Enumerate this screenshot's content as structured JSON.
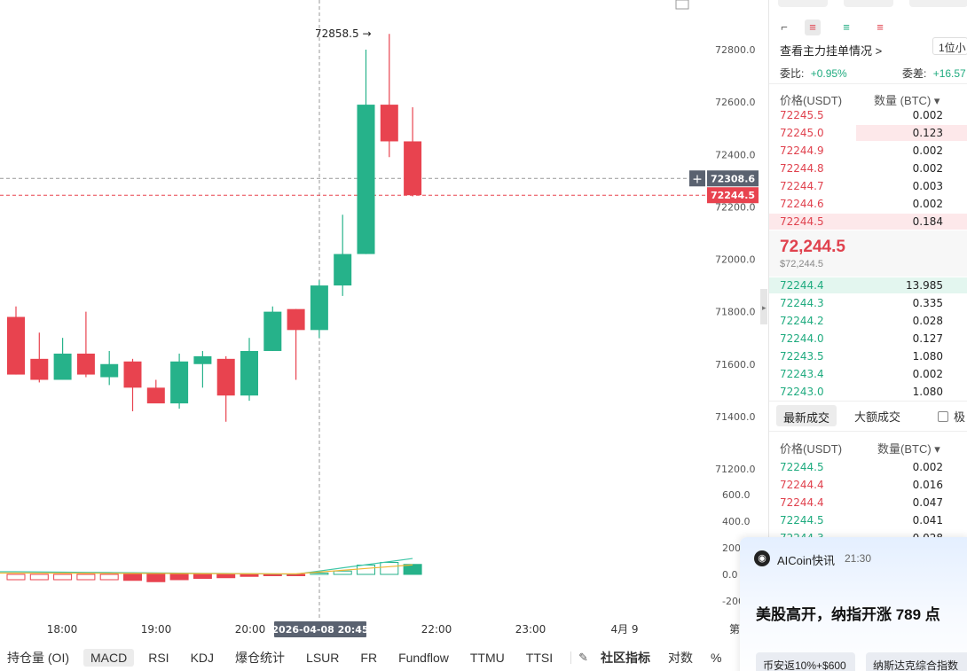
{
  "chart": {
    "price_axis": [
      "72800.0",
      "72600.0",
      "72400.0",
      "72200.0",
      "72000.0",
      "71800.0",
      "71600.0",
      "71400.0",
      "71200.0"
    ],
    "macd_axis": [
      "600.0",
      "400.0",
      "200",
      "0.0",
      "-200"
    ],
    "time_axis": [
      "18:00",
      "19:00",
      "20:00",
      "22:00",
      "23:00",
      "4月 9",
      "第"
    ],
    "crosshair_time": "2026-04-08 20:45",
    "crosshair_price": "72308.6",
    "crosshair_plus": "+",
    "last_price_tag": "72244.5",
    "high_marker": "72858.5 →",
    "colors": {
      "up": "#26b28a",
      "down": "#e8434f",
      "ma_fast": "#3fc7a8",
      "ma_slow": "#f2b633"
    }
  },
  "chart_data": {
    "type": "candlestick",
    "y_range": [
      71200,
      72850
    ],
    "candles": [
      {
        "o": 71780,
        "h": 71820,
        "l": 71560,
        "c": 71560
      },
      {
        "o": 71620,
        "h": 71720,
        "l": 71530,
        "c": 71540
      },
      {
        "o": 71540,
        "h": 71700,
        "l": 71540,
        "c": 71640
      },
      {
        "o": 71640,
        "h": 71800,
        "l": 71550,
        "c": 71560
      },
      {
        "o": 71550,
        "h": 71650,
        "l": 71520,
        "c": 71600
      },
      {
        "o": 71610,
        "h": 71620,
        "l": 71420,
        "c": 71510
      },
      {
        "o": 71510,
        "h": 71540,
        "l": 71460,
        "c": 71450
      },
      {
        "o": 71450,
        "h": 71640,
        "l": 71430,
        "c": 71610
      },
      {
        "o": 71600,
        "h": 71650,
        "l": 71510,
        "c": 71630
      },
      {
        "o": 71620,
        "h": 71630,
        "l": 71380,
        "c": 71480
      },
      {
        "o": 71480,
        "h": 71700,
        "l": 71460,
        "c": 71650
      },
      {
        "o": 71650,
        "h": 71820,
        "l": 71650,
        "c": 71800
      },
      {
        "o": 71810,
        "h": 71810,
        "l": 71540,
        "c": 71730
      },
      {
        "o": 71730,
        "h": 71920,
        "l": 71700,
        "c": 71900
      },
      {
        "o": 71900,
        "h": 72170,
        "l": 71860,
        "c": 72020
      },
      {
        "o": 72020,
        "h": 72800,
        "l": 72020,
        "c": 72590
      },
      {
        "o": 72590,
        "h": 72860,
        "l": 72390,
        "c": 72450
      },
      {
        "o": 72450,
        "h": 72580,
        "l": 72240,
        "c": 72244.5
      }
    ],
    "macd_hist": [
      -40,
      -40,
      -40,
      -40,
      -40,
      -45,
      -55,
      -40,
      -30,
      -25,
      -15,
      -10,
      -5,
      10,
      25,
      70,
      90,
      75
    ],
    "macd_range": [
      -200,
      700
    ]
  },
  "indicators": {
    "tabs": [
      "持仓量 (OI)",
      "MACD",
      "RSI",
      "KDJ",
      "爆仓统计",
      "LSUR",
      "FR",
      "Fundflow",
      "TTMU",
      "TTSI"
    ],
    "active": "MACD",
    "community": "社区指标",
    "log": "对数",
    "percent": "%"
  },
  "orderbook": {
    "precision": "1位小",
    "main_orders": "查看主力挂单情况 >",
    "ratio_label": "委比:",
    "ratio_value": "+0.95%",
    "diff_label": "委差:",
    "diff_value": "+16.57",
    "price_header": "价格(USDT)",
    "qty_header": "数量 (BTC) ▾",
    "asks": [
      {
        "p": "72245.5",
        "q": "0.002"
      },
      {
        "p": "72245.0",
        "q": "0.123"
      },
      {
        "p": "72244.9",
        "q": "0.002"
      },
      {
        "p": "72244.8",
        "q": "0.002"
      },
      {
        "p": "72244.7",
        "q": "0.003"
      },
      {
        "p": "72244.6",
        "q": "0.002"
      },
      {
        "p": "72244.5",
        "q": "0.184"
      }
    ],
    "mid_price": "72,244.5",
    "mid_usd": "$72,244.5",
    "bids": [
      {
        "p": "72244.4",
        "q": "13.985"
      },
      {
        "p": "72244.3",
        "q": "0.335"
      },
      {
        "p": "72244.2",
        "q": "0.028"
      },
      {
        "p": "72244.0",
        "q": "0.127"
      },
      {
        "p": "72243.5",
        "q": "1.080"
      },
      {
        "p": "72243.4",
        "q": "0.002"
      },
      {
        "p": "72243.0",
        "q": "1.080"
      }
    ],
    "trades_tab": "最新成交",
    "large_tab": "大额成交",
    "extreme_label": "极",
    "trades_price_header": "价格(USDT)",
    "trades_qty_header": "数量(BTC) ▾",
    "trades": [
      {
        "p": "72244.5",
        "q": "0.002",
        "side": "buy"
      },
      {
        "p": "72244.4",
        "q": "0.016",
        "side": "sell"
      },
      {
        "p": "72244.4",
        "q": "0.047",
        "side": "sell"
      },
      {
        "p": "72244.5",
        "q": "0.041",
        "side": "buy"
      },
      {
        "p": "72244.3",
        "q": "0.028",
        "side": "buy"
      }
    ]
  },
  "notification": {
    "source": "AICoin快讯",
    "time": "21:30",
    "message": "美股高开，纳指开涨 789 点",
    "chips": [
      "币安返10%+$600",
      "纳斯达克综合指数"
    ]
  }
}
